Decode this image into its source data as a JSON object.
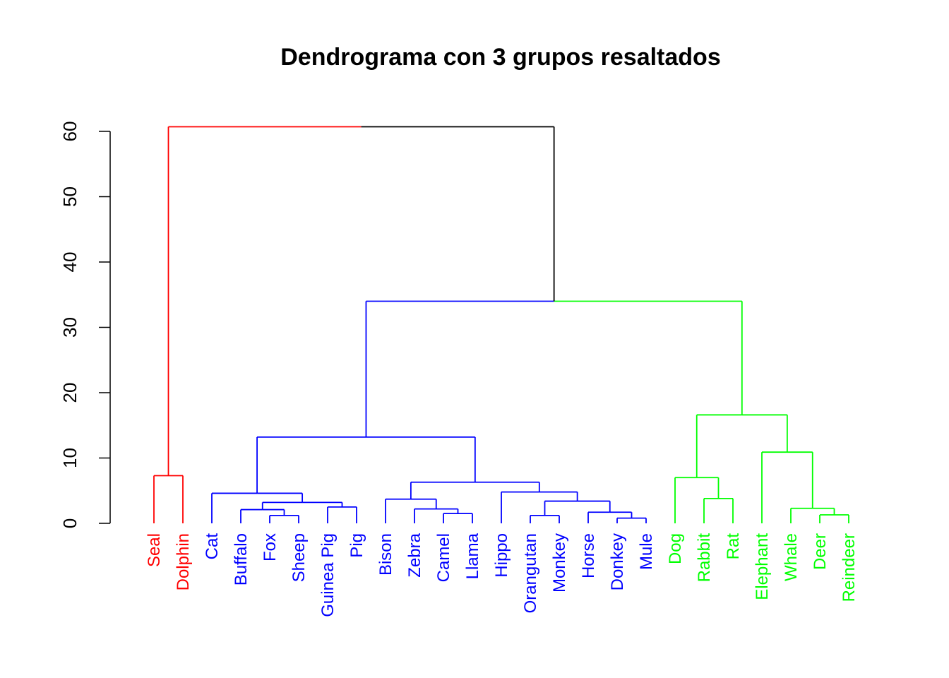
{
  "chart_data": {
    "type": "dendrogram",
    "title": "Dendrograma con 3 grupos resaltados",
    "xlabel": "",
    "ylabel": "",
    "ylim": [
      0,
      60
    ],
    "yticks": [
      "0",
      "10",
      "20",
      "30",
      "40",
      "50",
      "60"
    ],
    "grid": false,
    "cluster_colors": {
      "1": "#ff0000",
      "2": "#0000ff",
      "3": "#00ff00",
      "root": "#000000"
    },
    "leaves": [
      {
        "label": "Seal",
        "cluster": 1
      },
      {
        "label": "Dolphin",
        "cluster": 1
      },
      {
        "label": "Cat",
        "cluster": 2
      },
      {
        "label": "Buffalo",
        "cluster": 2
      },
      {
        "label": "Fox",
        "cluster": 2
      },
      {
        "label": "Sheep",
        "cluster": 2
      },
      {
        "label": "Guinea Pig",
        "cluster": 2
      },
      {
        "label": "Pig",
        "cluster": 2
      },
      {
        "label": "Bison",
        "cluster": 2
      },
      {
        "label": "Zebra",
        "cluster": 2
      },
      {
        "label": "Camel",
        "cluster": 2
      },
      {
        "label": "Llama",
        "cluster": 2
      },
      {
        "label": "Hippo",
        "cluster": 2
      },
      {
        "label": "Orangutan",
        "cluster": 2
      },
      {
        "label": "Monkey",
        "cluster": 2
      },
      {
        "label": "Horse",
        "cluster": 2
      },
      {
        "label": "Donkey",
        "cluster": 2
      },
      {
        "label": "Mule",
        "cluster": 2
      },
      {
        "label": "Dog",
        "cluster": 3
      },
      {
        "label": "Rabbit",
        "cluster": 3
      },
      {
        "label": "Rat",
        "cluster": 3
      },
      {
        "label": "Elephant",
        "cluster": 3
      },
      {
        "label": "Whale",
        "cluster": 3
      },
      {
        "label": "Deer",
        "cluster": 3
      },
      {
        "label": "Reindeer",
        "cluster": 3
      }
    ],
    "merges": [
      {
        "id": "m1",
        "left": "Seal",
        "right": "Dolphin",
        "height": 7.3,
        "color": "1"
      },
      {
        "id": "m2",
        "left": "Fox",
        "right": "Sheep",
        "height": 1.2,
        "color": "2"
      },
      {
        "id": "m3",
        "left": "Buffalo",
        "right": "m2",
        "height": 2.1,
        "color": "2"
      },
      {
        "id": "m4",
        "left": "Guinea Pig",
        "right": "Pig",
        "height": 2.5,
        "color": "2"
      },
      {
        "id": "m5",
        "left": "m3",
        "right": "m4",
        "height": 3.2,
        "color": "2"
      },
      {
        "id": "m6",
        "left": "Cat",
        "right": "m5",
        "height": 4.6,
        "color": "2"
      },
      {
        "id": "m7",
        "left": "Camel",
        "right": "Llama",
        "height": 1.5,
        "color": "2"
      },
      {
        "id": "m8",
        "left": "Zebra",
        "right": "m7",
        "height": 2.2,
        "color": "2"
      },
      {
        "id": "m9",
        "left": "Bison",
        "right": "m8",
        "height": 3.7,
        "color": "2"
      },
      {
        "id": "m10",
        "left": "Orangutan",
        "right": "Monkey",
        "height": 1.2,
        "color": "2"
      },
      {
        "id": "m11",
        "left": "Donkey",
        "right": "Mule",
        "height": 0.8,
        "color": "2"
      },
      {
        "id": "m12",
        "left": "Horse",
        "right": "m11",
        "height": 1.7,
        "color": "2"
      },
      {
        "id": "m13",
        "left": "m10",
        "right": "m12",
        "height": 3.4,
        "color": "2"
      },
      {
        "id": "m14",
        "left": "Hippo",
        "right": "m13",
        "height": 4.8,
        "color": "2"
      },
      {
        "id": "m15",
        "left": "m9",
        "right": "m14",
        "height": 6.3,
        "color": "2"
      },
      {
        "id": "m16",
        "left": "m6",
        "right": "m15",
        "height": 13.2,
        "color": "2"
      },
      {
        "id": "m17",
        "left": "Rabbit",
        "right": "Rat",
        "height": 3.8,
        "color": "3"
      },
      {
        "id": "m18",
        "left": "Dog",
        "right": "m17",
        "height": 7.0,
        "color": "3"
      },
      {
        "id": "m19",
        "left": "Deer",
        "right": "Reindeer",
        "height": 1.3,
        "color": "3"
      },
      {
        "id": "m20",
        "left": "Whale",
        "right": "m19",
        "height": 2.3,
        "color": "3"
      },
      {
        "id": "m21",
        "left": "Elephant",
        "right": "m20",
        "height": 10.9,
        "color": "3"
      },
      {
        "id": "m22",
        "left": "m18",
        "right": "m21",
        "height": 16.6,
        "color": "3"
      },
      {
        "id": "m23",
        "left": "m16",
        "right": "m22",
        "height": 34.0,
        "color": "mixed"
      },
      {
        "id": "m24",
        "left": "m1",
        "right": "m23",
        "height": 60.7,
        "color": "mixed"
      }
    ]
  }
}
